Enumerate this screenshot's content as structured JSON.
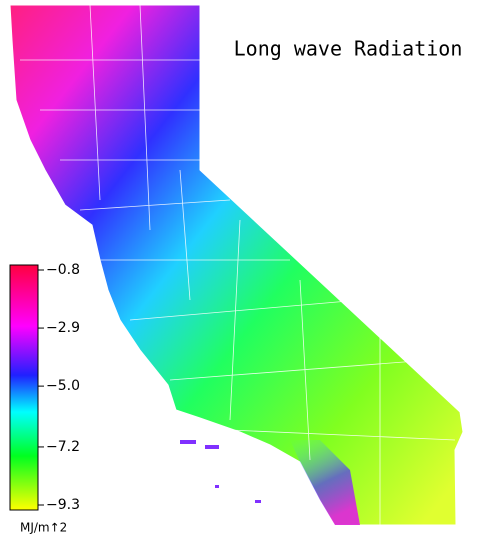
{
  "title": "Long wave Radiation",
  "colorbar": {
    "lim": [
      -9.3,
      -0.8
    ],
    "ticks": [
      {
        "value": -0.8,
        "label": "−0.8"
      },
      {
        "value": -2.9,
        "label": "−2.9"
      },
      {
        "value": -5,
        "label": "−5.0"
      },
      {
        "value": -7.2,
        "label": "−7.2"
      },
      {
        "value": -9.3,
        "label": "−9.3"
      }
    ],
    "unit": "MJ/m↑2"
  }
}
